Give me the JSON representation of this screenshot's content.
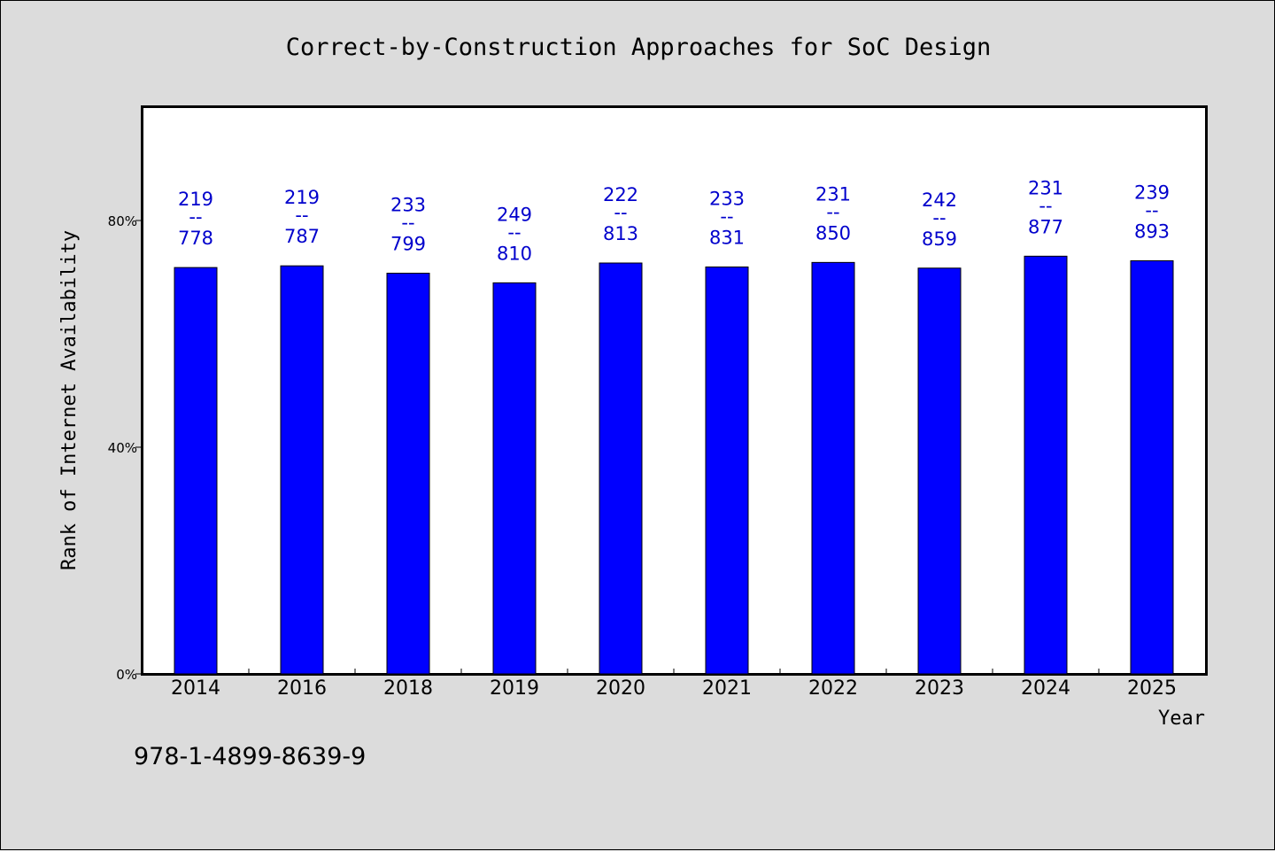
{
  "chart_data": {
    "type": "bar",
    "title": "Correct-by-Construction Approaches for SoC Design",
    "xlabel": "Year",
    "ylabel": "Rank of Internet Availability",
    "categories": [
      "2014",
      "2016",
      "2018",
      "2019",
      "2020",
      "2021",
      "2022",
      "2023",
      "2024",
      "2025"
    ],
    "values": [
      71.7,
      72.0,
      70.7,
      69.0,
      72.5,
      71.8,
      72.6,
      71.6,
      73.7,
      72.9
    ],
    "value_unit": "%",
    "labels": [
      {
        "top": "219",
        "sep": "--",
        "bottom": "778"
      },
      {
        "top": "219",
        "sep": "--",
        "bottom": "787"
      },
      {
        "top": "233",
        "sep": "--",
        "bottom": "799"
      },
      {
        "top": "249",
        "sep": "--",
        "bottom": "810"
      },
      {
        "top": "222",
        "sep": "--",
        "bottom": "813"
      },
      {
        "top": "233",
        "sep": "--",
        "bottom": "831"
      },
      {
        "top": "231",
        "sep": "--",
        "bottom": "850"
      },
      {
        "top": "242",
        "sep": "--",
        "bottom": "859"
      },
      {
        "top": "231",
        "sep": "--",
        "bottom": "877"
      },
      {
        "top": "239",
        "sep": "--",
        "bottom": "893"
      }
    ],
    "ylim": [
      0,
      100
    ],
    "yticks": [
      0,
      40,
      80
    ],
    "ytick_labels": [
      "0%",
      "40%",
      "80%"
    ],
    "grid": false,
    "legend": "none",
    "colors": {
      "bar": "#0000ff",
      "label": "#0000cc",
      "plot_bg": "#ffffff",
      "page_bg": "#dcdcdc"
    }
  },
  "footer": {
    "isbn": "978-1-4899-8639-9"
  }
}
